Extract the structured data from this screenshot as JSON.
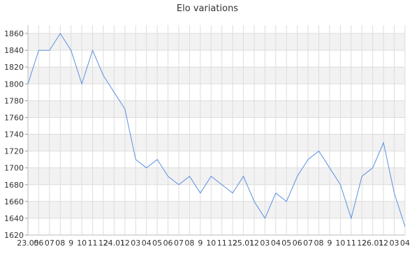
{
  "chart_data": {
    "type": "line",
    "title": "Elo variations",
    "xlabel": "",
    "ylabel": "",
    "ylim": [
      1620,
      1870
    ],
    "yticks": [
      1620,
      1640,
      1660,
      1680,
      1700,
      1720,
      1740,
      1760,
      1780,
      1800,
      1820,
      1840,
      1860
    ],
    "grid": true,
    "legend": "none",
    "line_color": "#5b8fe0",
    "band_color": "#f2f2f2",
    "grid_color": "#dddddd",
    "x_tick_labels": [
      "23.05",
      "06",
      "07",
      "08",
      "9",
      "10",
      "11",
      "12",
      "24.01",
      "12",
      "03",
      "04",
      "05",
      "06",
      "07",
      "08",
      "9",
      "10",
      "11",
      "12",
      "25.01",
      "12",
      "03",
      "04",
      "05",
      "06",
      "07",
      "08",
      "9",
      "10",
      "11",
      "12",
      "26.01",
      "12",
      "03",
      "04"
    ],
    "series": [
      {
        "values": [
          1800,
          1840,
          1840,
          1860,
          1840,
          1800,
          1840,
          1810,
          1790,
          1770,
          1710,
          1700,
          1710,
          1690,
          1680,
          1690,
          1670,
          1690,
          1680,
          1670,
          1690,
          1660,
          1640,
          1670,
          1660,
          1690,
          1710,
          1720,
          1700,
          1680,
          1640,
          1690,
          1700,
          1730,
          1670,
          1630
        ]
      }
    ]
  }
}
